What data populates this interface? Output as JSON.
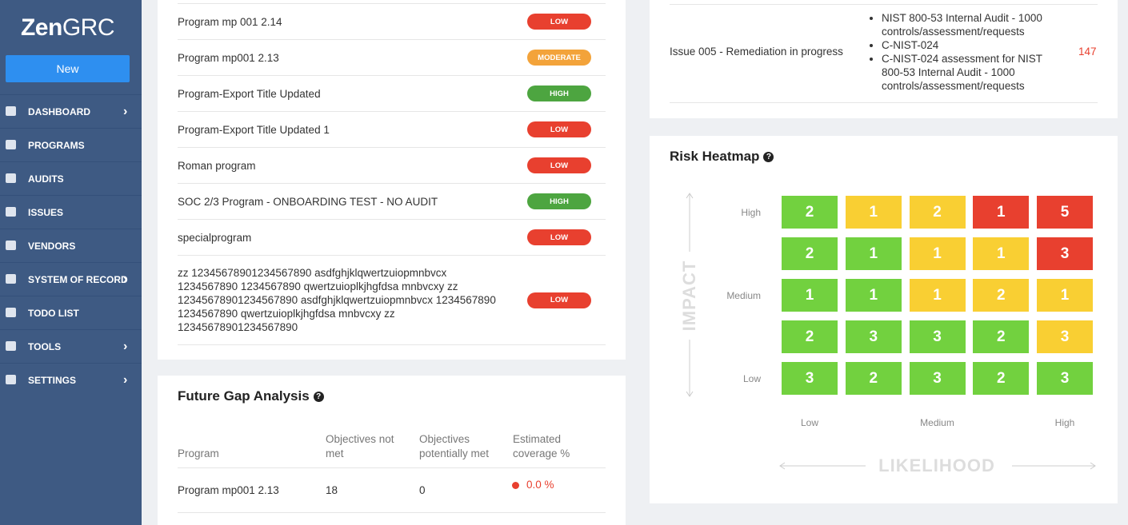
{
  "sidebar": {
    "logo_bold": "Zen",
    "logo_light": "GRC",
    "new_button": "New",
    "nav": [
      {
        "label": "DASHBOARD",
        "chevron": true
      },
      {
        "label": "PROGRAMS",
        "chevron": false
      },
      {
        "label": "AUDITS",
        "chevron": false
      },
      {
        "label": "ISSUES",
        "chevron": false
      },
      {
        "label": "VENDORS",
        "chevron": false
      },
      {
        "label": "SYSTEM OF RECORD",
        "chevron": true
      },
      {
        "label": "TODO LIST",
        "chevron": false
      },
      {
        "label": "TOOLS",
        "chevron": true
      },
      {
        "label": "SETTINGS",
        "chevron": true
      }
    ]
  },
  "programs": [
    {
      "name": "Program mp 001 2.14",
      "risk": "LOW",
      "color": "#e8402f"
    },
    {
      "name": "Program mp001 2.13",
      "risk": "MODERATE",
      "color": "#f3a33a"
    },
    {
      "name": "Program-Export Title Updated",
      "risk": "HIGH",
      "color": "#4da540"
    },
    {
      "name": "Program-Export Title Updated 1",
      "risk": "LOW",
      "color": "#e8402f"
    },
    {
      "name": "Roman program",
      "risk": "LOW",
      "color": "#e8402f"
    },
    {
      "name": "SOC 2/3 Program - ONBOARDING TEST - NO AUDIT",
      "risk": "HIGH",
      "color": "#4da540"
    },
    {
      "name": "specialprogram",
      "risk": "LOW",
      "color": "#e8402f"
    },
    {
      "name": "zz 12345678901234567890 asdfghjklqwertzuiopmnbvcx 1234567890 1234567890 qwertzuioplkjhgfdsa mnbvcxy zz 12345678901234567890 asdfghjklqwertzuiopmnbvcx 1234567890 1234567890 qwertzuioplkjhgfdsa mnbvcxy zz 12345678901234567890",
      "risk": "LOW",
      "color": "#e8402f"
    }
  ],
  "gap_analysis": {
    "title": "Future Gap Analysis",
    "headers": [
      "Program",
      "Objectives not met",
      "Objectives potentially met",
      "Estimated coverage %"
    ],
    "rows": [
      [
        "Program mp001 2.13",
        "18",
        "0",
        "0.0 %"
      ]
    ]
  },
  "issues": [
    {
      "title": "Issue 005 - Remediation in progress",
      "items": [
        "NIST 800-53 Internal Audit - 1000 controls/assessment/requests",
        "C-NIST-024",
        "C-NIST-024 assessment for NIST 800-53 Internal Audit - 1000 controls/assessment/requests"
      ],
      "count": "147"
    }
  ],
  "heatmap": {
    "title": "Risk Heatmap",
    "y_axis": "IMPACT",
    "x_axis": "LIKELIHOOD",
    "y_labels": [
      "High",
      null,
      "Medium",
      null,
      "Low"
    ],
    "x_labels": [
      "Low",
      null,
      "Medium",
      null,
      "High"
    ],
    "cells": [
      [
        {
          "value": 2,
          "color": "#72d13f"
        },
        {
          "value": 1,
          "color": "#f9cf33"
        },
        {
          "value": 2,
          "color": "#f9cf33"
        },
        {
          "value": 1,
          "color": "#e8402f"
        },
        {
          "value": 5,
          "color": "#e8402f"
        }
      ],
      [
        {
          "value": 2,
          "color": "#72d13f"
        },
        {
          "value": 1,
          "color": "#72d13f"
        },
        {
          "value": 1,
          "color": "#f9cf33"
        },
        {
          "value": 1,
          "color": "#f9cf33"
        },
        {
          "value": 3,
          "color": "#e8402f"
        }
      ],
      [
        {
          "value": 1,
          "color": "#72d13f"
        },
        {
          "value": 1,
          "color": "#72d13f"
        },
        {
          "value": 1,
          "color": "#f9cf33"
        },
        {
          "value": 2,
          "color": "#f9cf33"
        },
        {
          "value": 1,
          "color": "#f9cf33"
        }
      ],
      [
        {
          "value": 2,
          "color": "#72d13f"
        },
        {
          "value": 3,
          "color": "#72d13f"
        },
        {
          "value": 3,
          "color": "#72d13f"
        },
        {
          "value": 2,
          "color": "#72d13f"
        },
        {
          "value": 3,
          "color": "#f9cf33"
        }
      ],
      [
        {
          "value": 3,
          "color": "#72d13f"
        },
        {
          "value": 2,
          "color": "#72d13f"
        },
        {
          "value": 3,
          "color": "#72d13f"
        },
        {
          "value": 2,
          "color": "#72d13f"
        },
        {
          "value": 3,
          "color": "#72d13f"
        }
      ]
    ]
  }
}
